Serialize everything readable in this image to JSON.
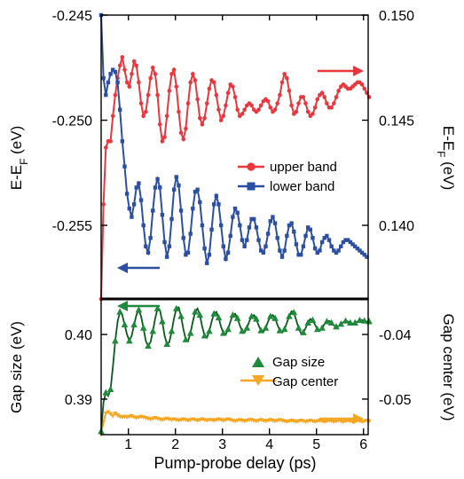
{
  "figure": {
    "xlabel": "Pump-probe delay (ps)",
    "xticks": [
      "1",
      "2",
      "3",
      "4",
      "5",
      "6"
    ]
  },
  "colors": {
    "upper": "#e8383d",
    "lower": "#2c4fa3",
    "gap": "#1f8a3b",
    "center": "#f5a623",
    "axis": "#000000"
  },
  "chart_data": [
    {
      "type": "line",
      "panel": "top",
      "xlim": [
        0.42,
        6.1
      ],
      "y_left": {
        "label_main": "E-E",
        "label_sub": "F",
        "label_unit": " (eV)",
        "lim": [
          -0.2585,
          -0.245
        ],
        "ticks": [
          "-0.245",
          "-0.250",
          "-0.255"
        ]
      },
      "y_right": {
        "label_main": "E-E",
        "label_sub": "F",
        "label_unit": " (eV)",
        "lim": [
          0.1365,
          0.15
        ],
        "ticks": [
          "0.150",
          "0.145",
          "0.140"
        ]
      },
      "legend": {
        "position": "center-right",
        "entries": [
          "upper band",
          "lower band"
        ]
      },
      "series": [
        {
          "name": "upper band",
          "axis": "right",
          "marker": "circle",
          "x_start": 0.42,
          "x_step": 0.05,
          "values": [
            0.1365,
            0.141,
            0.1437,
            0.144,
            0.144,
            0.1452,
            0.1462,
            0.147,
            0.1476,
            0.148,
            0.1474,
            0.1468,
            0.1466,
            0.1472,
            0.1478,
            0.1476,
            0.1468,
            0.1458,
            0.1452,
            0.1454,
            0.1462,
            0.147,
            0.1475,
            0.1472,
            0.1462,
            0.1448,
            0.144,
            0.1442,
            0.1452,
            0.1464,
            0.1472,
            0.1474,
            0.1466,
            0.1454,
            0.1444,
            0.1441,
            0.1446,
            0.1458,
            0.1468,
            0.1472,
            0.1469,
            0.146,
            0.1451,
            0.1448,
            0.1451,
            0.1458,
            0.1465,
            0.1469,
            0.1468,
            0.1462,
            0.1455,
            0.145,
            0.1452,
            0.1457,
            0.1463,
            0.1467,
            0.1466,
            0.1461,
            0.1455,
            0.1452,
            0.1453,
            0.1455,
            0.1457,
            0.1458,
            0.1457,
            0.1455,
            0.1454,
            0.1455,
            0.1457,
            0.1459,
            0.146,
            0.1459,
            0.1456,
            0.1454,
            0.1455,
            0.1458,
            0.1462,
            0.1468,
            0.1472,
            0.147,
            0.1464,
            0.1457,
            0.1453,
            0.1454,
            0.1458,
            0.1461,
            0.1461,
            0.1458,
            0.1454,
            0.1452,
            0.1453,
            0.1456,
            0.146,
            0.1462,
            0.1463,
            0.1461,
            0.1458,
            0.1456,
            0.1456,
            0.1458,
            0.1461,
            0.1464,
            0.1466,
            0.1467,
            0.1466,
            0.1465,
            0.1465,
            0.1466,
            0.1467,
            0.1468,
            0.1468,
            0.1467,
            0.1465,
            0.1463,
            0.1461
          ]
        },
        {
          "name": "lower band",
          "axis": "left",
          "marker": "square",
          "x_start": 0.42,
          "x_step": 0.05,
          "values": [
            -0.245,
            -0.248,
            -0.2488,
            -0.2482,
            -0.2478,
            -0.2476,
            -0.2477,
            -0.2482,
            -0.2495,
            -0.251,
            -0.2522,
            -0.2535,
            -0.2542,
            -0.2546,
            -0.254,
            -0.2532,
            -0.253,
            -0.2538,
            -0.255,
            -0.256,
            -0.2563,
            -0.2556,
            -0.2543,
            -0.2532,
            -0.2528,
            -0.2532,
            -0.2545,
            -0.2558,
            -0.2565,
            -0.256,
            -0.2547,
            -0.2533,
            -0.2527,
            -0.2531,
            -0.2543,
            -0.2556,
            -0.2564,
            -0.2563,
            -0.2554,
            -0.2542,
            -0.2534,
            -0.2533,
            -0.2539,
            -0.255,
            -0.2561,
            -0.2568,
            -0.2564,
            -0.2552,
            -0.254,
            -0.2536,
            -0.254,
            -0.255,
            -0.256,
            -0.2566,
            -0.2563,
            -0.2555,
            -0.2546,
            -0.2542,
            -0.2544,
            -0.255,
            -0.2557,
            -0.256,
            -0.2557,
            -0.2551,
            -0.2547,
            -0.2547,
            -0.2551,
            -0.2557,
            -0.2562,
            -0.2563,
            -0.256,
            -0.2554,
            -0.2548,
            -0.2546,
            -0.2549,
            -0.2556,
            -0.2562,
            -0.2565,
            -0.2562,
            -0.2555,
            -0.255,
            -0.2549,
            -0.2553,
            -0.2559,
            -0.2564,
            -0.2564,
            -0.256,
            -0.2555,
            -0.2551,
            -0.2552,
            -0.2556,
            -0.2561,
            -0.2563,
            -0.2562,
            -0.2558,
            -0.2556,
            -0.2555,
            -0.2557,
            -0.256,
            -0.2562,
            -0.2563,
            -0.2562,
            -0.256,
            -0.2558,
            -0.2557,
            -0.2557,
            -0.2558,
            -0.2559,
            -0.256,
            -0.2561,
            -0.2562,
            -0.2563,
            -0.2564,
            -0.2565
          ]
        }
      ]
    },
    {
      "type": "scatter",
      "panel": "bottom",
      "xlim": [
        0.42,
        6.1
      ],
      "y_left": {
        "label": "Gap size (eV)",
        "lim": [
          0.3845,
          0.4055
        ],
        "ticks": [
          "0.40",
          "0.39"
        ]
      },
      "y_right": {
        "label": "Gap center (eV)",
        "lim": [
          -0.0555,
          -0.0345
        ],
        "ticks": [
          "-0.04",
          "-0.05"
        ]
      },
      "legend": {
        "position": "lower-right",
        "entries": [
          "Gap size",
          "Gap center"
        ]
      },
      "series": [
        {
          "name": "Gap size",
          "axis": "left",
          "marker": "triangle-up",
          "x_start": 0.42,
          "x_step": 0.05,
          "values": [
            0.385,
            0.3895,
            0.391,
            0.3905,
            0.3915,
            0.395,
            0.399,
            0.402,
            0.4035,
            0.403,
            0.4015,
            0.4,
            0.399,
            0.3998,
            0.4015,
            0.403,
            0.4038,
            0.4028,
            0.401,
            0.399,
            0.3982,
            0.3988,
            0.4005,
            0.4025,
            0.404,
            0.4038,
            0.402,
            0.3998,
            0.3985,
            0.3988,
            0.4005,
            0.4025,
            0.404,
            0.4042,
            0.4028,
            0.4008,
            0.3992,
            0.399,
            0.4002,
            0.402,
            0.4035,
            0.404,
            0.403,
            0.4012,
            0.3998,
            0.3995,
            0.4005,
            0.402,
            0.4032,
            0.4035,
            0.4026,
            0.4012,
            0.4002,
            0.4,
            0.4008,
            0.402,
            0.403,
            0.4032,
            0.4025,
            0.4014,
            0.4005,
            0.4003,
            0.401,
            0.402,
            0.4028,
            0.403,
            0.4024,
            0.4014,
            0.4006,
            0.4004,
            0.401,
            0.402,
            0.4028,
            0.403,
            0.4025,
            0.4015,
            0.4006,
            0.4003,
            0.4008,
            0.4018,
            0.4028,
            0.4036,
            0.4034,
            0.4022,
            0.401,
            0.4002,
            0.4003,
            0.401,
            0.4018,
            0.4024,
            0.4022,
            0.4015,
            0.4008,
            0.4006,
            0.401,
            0.4016,
            0.402,
            0.4021,
            0.4018,
            0.4014,
            0.4012,
            0.4013,
            0.4016,
            0.4019,
            0.4021,
            0.402,
            0.4018,
            0.4017,
            0.4018,
            0.402,
            0.4022,
            0.4022,
            0.4021,
            0.402,
            0.402
          ]
        },
        {
          "name": "Gap center",
          "axis": "right",
          "marker": "triangle-down",
          "x_start": 0.42,
          "x_step": 0.05,
          "values": [
            -0.0555,
            -0.0535,
            -0.0522,
            -0.052,
            -0.0523,
            -0.0526,
            -0.0522,
            -0.0525,
            -0.0527,
            -0.0528,
            -0.0527,
            -0.0528,
            -0.0527,
            -0.0526,
            -0.0528,
            -0.0529,
            -0.0528,
            -0.0527,
            -0.0528,
            -0.0529,
            -0.053,
            -0.0531,
            -0.053,
            -0.0529,
            -0.053,
            -0.0531,
            -0.0532,
            -0.0531,
            -0.053,
            -0.0531,
            -0.0532,
            -0.0531,
            -0.0532,
            -0.0533,
            -0.0532,
            -0.0531,
            -0.0532,
            -0.0533,
            -0.0532,
            -0.0531,
            -0.0532,
            -0.0533,
            -0.0532,
            -0.0531,
            -0.0532,
            -0.0533,
            -0.0532,
            -0.0532,
            -0.0533,
            -0.0532,
            -0.0531,
            -0.0532,
            -0.0533,
            -0.0532,
            -0.0531,
            -0.0532,
            -0.0533,
            -0.0534,
            -0.0533,
            -0.0532,
            -0.0533,
            -0.0534,
            -0.0533,
            -0.0532,
            -0.0532,
            -0.0533,
            -0.0534,
            -0.0533,
            -0.0532,
            -0.0533,
            -0.0534,
            -0.0533,
            -0.0532,
            -0.0533,
            -0.0534,
            -0.0533,
            -0.0532,
            -0.0533,
            -0.0534,
            -0.0535,
            -0.0534,
            -0.0533,
            -0.0534,
            -0.0535,
            -0.0534,
            -0.0533,
            -0.0534,
            -0.0535,
            -0.0534,
            -0.0533,
            -0.0534,
            -0.0535,
            -0.0534,
            -0.0533,
            -0.0534,
            -0.0535,
            -0.0534,
            -0.0533,
            -0.0534,
            -0.0535,
            -0.0534,
            -0.0533,
            -0.0534,
            -0.0535,
            -0.0534,
            -0.0533,
            -0.0534,
            -0.0535,
            -0.0534,
            -0.0533,
            -0.0534,
            -0.0535,
            -0.0534,
            -0.0533,
            -0.0534
          ]
        }
      ]
    }
  ]
}
